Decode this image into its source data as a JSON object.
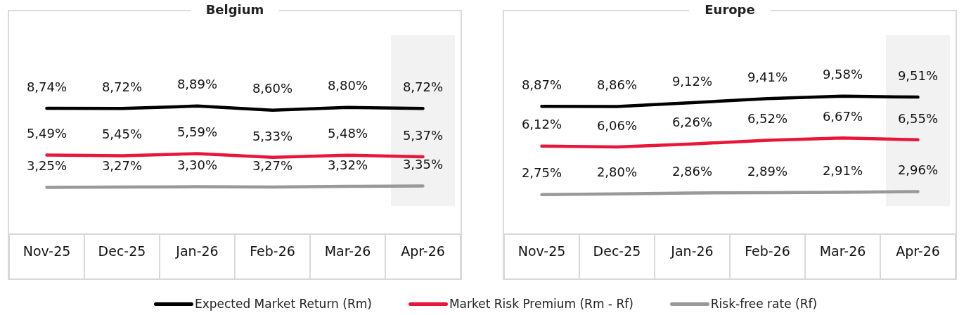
{
  "chart_data": [
    {
      "type": "line",
      "title": "Belgium",
      "categories": [
        "Nov-25",
        "Dec-25",
        "Jan-26",
        "Feb-26",
        "Mar-26",
        "Apr-26"
      ],
      "legend": "bottom",
      "grid": false,
      "bands": [
        {
          "axis": "x",
          "from": "Apr-26",
          "to": "Apr-26",
          "color": "#f2f2f2"
        }
      ],
      "series": [
        {
          "name": "Expected Market Return (Rm)",
          "color": "#000000",
          "values": [
            8.74,
            8.72,
            8.89,
            8.6,
            8.8,
            8.72
          ],
          "value_labels": [
            "8,74%",
            "8,72%",
            "8,89%",
            "8,60%",
            "8,80%",
            "8,72%"
          ]
        },
        {
          "name": "Market Risk Premium (Rm - Rf)",
          "color": "#e8173a",
          "values": [
            5.49,
            5.45,
            5.59,
            5.33,
            5.48,
            5.37
          ],
          "value_labels": [
            "5,49%",
            "5,45%",
            "5,59%",
            "5,33%",
            "5,48%",
            "5,37%"
          ]
        },
        {
          "name": "Risk-free rate (Rf)",
          "color": "#999999",
          "values": [
            3.25,
            3.27,
            3.3,
            3.27,
            3.32,
            3.35
          ],
          "value_labels": [
            "3,25%",
            "3,27%",
            "3,30%",
            "3,27%",
            "3,32%",
            "3,35%"
          ]
        }
      ]
    },
    {
      "type": "line",
      "title": "Europe",
      "categories": [
        "Nov-25",
        "Dec-25",
        "Jan-26",
        "Feb-26",
        "Mar-26",
        "Apr-26"
      ],
      "grid": false,
      "bands": [
        {
          "axis": "x",
          "from": "Apr-26",
          "to": "Apr-26",
          "color": "#f2f2f2"
        }
      ],
      "series": [
        {
          "color": "#000000",
          "values": [
            8.87,
            8.86,
            9.12,
            9.41,
            9.58,
            9.51
          ],
          "value_labels": [
            "8,87%",
            "8,86%",
            "9,12%",
            "9,41%",
            "9,58%",
            "9,51%"
          ]
        },
        {
          "color": "#e8173a",
          "values": [
            6.12,
            6.06,
            6.26,
            6.52,
            6.67,
            6.55
          ],
          "value_labels": [
            "6,12%",
            "6,06%",
            "6,26%",
            "6,52%",
            "6,67%",
            "6,55%"
          ]
        },
        {
          "color": "#999999",
          "values": [
            2.75,
            2.8,
            2.86,
            2.89,
            2.91,
            2.96
          ],
          "value_labels": [
            "2,75%",
            "2,80%",
            "2,86%",
            "2,89%",
            "2,91%",
            "2,96%"
          ]
        }
      ]
    }
  ]
}
